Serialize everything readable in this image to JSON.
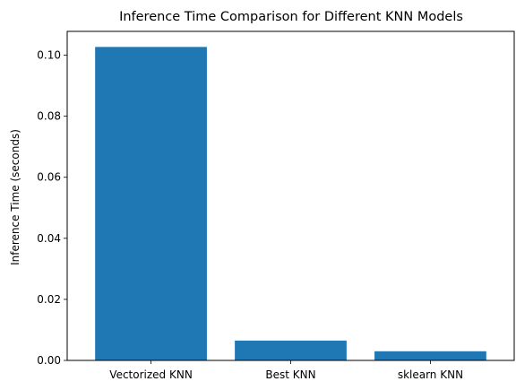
{
  "chart_data": {
    "type": "bar",
    "title": "Inference Time Comparison for Different KNN Models",
    "xlabel": "",
    "ylabel": "Inference Time (seconds)",
    "categories": [
      "Vectorized KNN",
      "Best KNN",
      "sklearn KNN"
    ],
    "values": [
      0.1027,
      0.0065,
      0.003
    ],
    "ylim": [
      0,
      0.1078
    ],
    "yticks": [
      0.0,
      0.02,
      0.04,
      0.06,
      0.08,
      0.1
    ],
    "ytick_labels": [
      "0.00",
      "0.02",
      "0.04",
      "0.06",
      "0.08",
      "0.10"
    ],
    "grid": false,
    "bar_color": "#1f77b4"
  }
}
